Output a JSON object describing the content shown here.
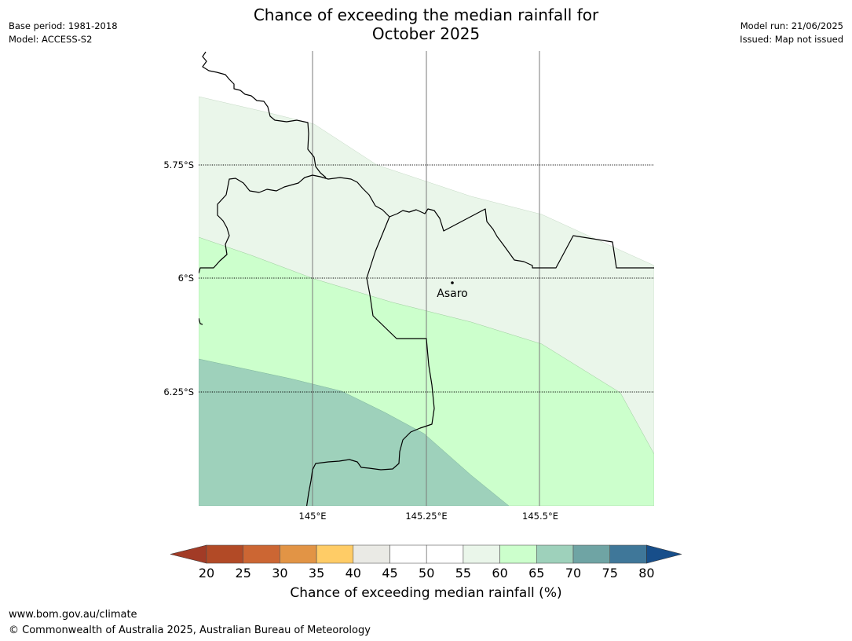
{
  "title_line1": "Chance of exceeding the median rainfall for",
  "title_line2": "October 2025",
  "meta_left": {
    "base_period": "Base period: 1981-2018",
    "model": "Model: ACCESS-S2"
  },
  "meta_right": {
    "model_run": "Model run: 21/06/2025",
    "issued": "Issued: Map not issued"
  },
  "map": {
    "lat_labels": [
      "5.75°S",
      "6°S",
      "6.25°S"
    ],
    "lon_labels": [
      "145°E",
      "145.25°E",
      "145.5°E"
    ],
    "place": {
      "name": "Asaro"
    },
    "colors": {
      "band_55_60": "#eaf6ea",
      "band_60_65": "#ccffcc",
      "band_65_70": "#9ed1bb"
    }
  },
  "colorbar": {
    "label": "Chance of exceeding median rainfall (%)",
    "ticks": [
      "20",
      "25",
      "30",
      "35",
      "40",
      "45",
      "50",
      "55",
      "60",
      "65",
      "70",
      "75",
      "80"
    ],
    "below_color": "#a23b26",
    "above_color": "#174e8a",
    "colors": [
      "#b24a26",
      "#cc6633",
      "#e29445",
      "#ffcc66",
      "#eaeae5",
      "#ffffff",
      "#ffffff",
      "#eaf6ea",
      "#ccffcc",
      "#9ed1bb",
      "#6fa4a4",
      "#3f7799"
    ]
  },
  "footer": {
    "url": "www.bom.gov.au/climate",
    "copyright": "© Commonwealth of Australia 2025, Australian Bureau of Meteorology"
  }
}
